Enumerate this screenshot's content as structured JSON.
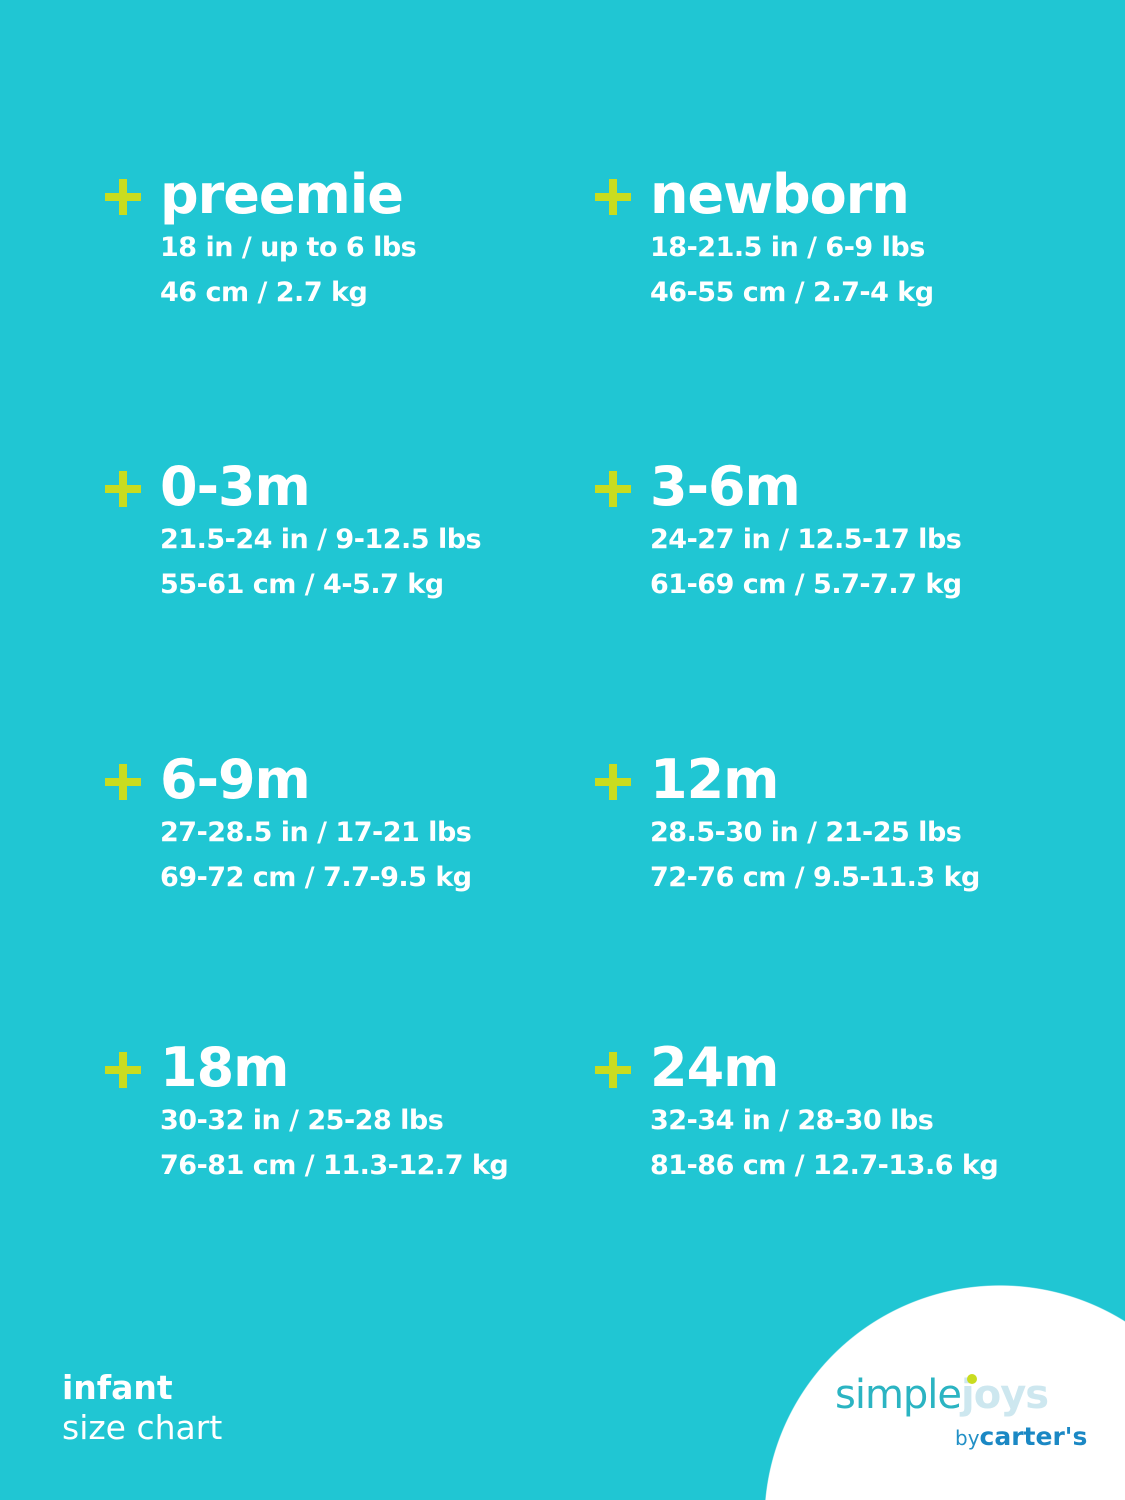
{
  "sizes": [
    {
      "label": "preemie",
      "imperial": "18 in / up to 6 lbs",
      "metric": "46 cm / 2.7 kg"
    },
    {
      "label": "newborn",
      "imperial": "18-21.5 in / 6-9 lbs",
      "metric": "46-55 cm / 2.7-4 kg"
    },
    {
      "label": "0-3m",
      "imperial": "21.5-24 in / 9-12.5 lbs",
      "metric": "55-61 cm / 4-5.7 kg"
    },
    {
      "label": "3-6m",
      "imperial": "24-27 in / 12.5-17 lbs",
      "metric": "61-69 cm / 5.7-7.7 kg"
    },
    {
      "label": "6-9m",
      "imperial": "27-28.5 in / 17-21 lbs",
      "metric": "69-72 cm / 7.7-9.5 kg"
    },
    {
      "label": "12m",
      "imperial": "28.5-30 in / 21-25 lbs",
      "metric": "72-76 cm / 9.5-11.3 kg"
    },
    {
      "label": "18m",
      "imperial": "30-32 in / 25-28 lbs",
      "metric": "76-81 cm / 11.3-12.7 kg"
    },
    {
      "label": "24m",
      "imperial": "32-34 in / 28-30 lbs",
      "metric": "81-86 cm / 12.7-13.6 kg"
    }
  ],
  "footer": {
    "line1": "infant",
    "line2": "size chart"
  },
  "logo": {
    "simple": "simple",
    "joys": "joys",
    "by": "by",
    "brand": "carter's"
  },
  "colors": {
    "background": "#20c6d3",
    "accent": "#c9dc1f",
    "text": "#ffffff"
  },
  "icons": {
    "bullet": "plus-icon"
  }
}
